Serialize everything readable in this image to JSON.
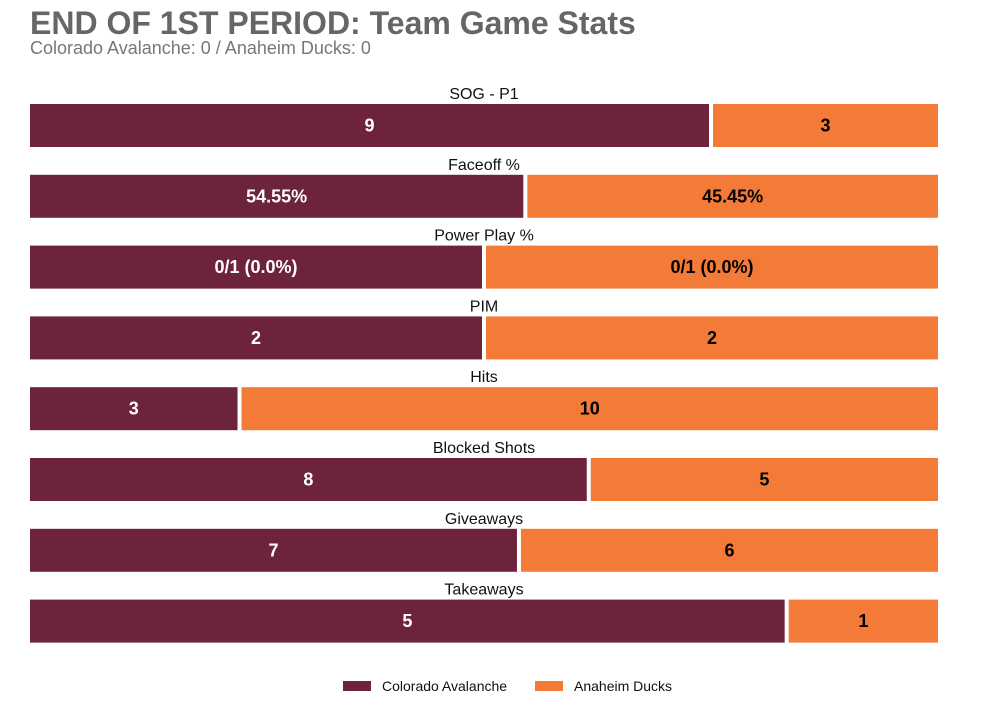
{
  "title": "END OF 1ST PERIOD: Team Game Stats",
  "subtitle": "Colorado Avalanche: 0 / Anaheim Ducks: 0",
  "colors": {
    "home": "#6e233d",
    "away": "#f47a38",
    "home_label": "#ffffff",
    "away_label": "#000000"
  },
  "chart_data": {
    "type": "bar",
    "orientation": "horizontal-stacked-percent",
    "categories": [
      "SOG - P1",
      "Faceoff %",
      "Power Play %",
      "PIM",
      "Hits",
      "Blocked Shots",
      "Giveaways",
      "Takeaways"
    ],
    "series": [
      {
        "name": "Colorado Avalanche",
        "values": [
          9,
          54.55,
          0.5,
          2,
          3,
          8,
          7,
          5
        ],
        "labels": [
          "9",
          "54.55%",
          "0/1 (0.0%)",
          "2",
          "3",
          "8",
          "7",
          "5"
        ]
      },
      {
        "name": "Anaheim Ducks",
        "values": [
          3,
          45.45,
          0.5,
          2,
          10,
          5,
          6,
          1
        ],
        "labels": [
          "3",
          "45.45%",
          "0/1 (0.0%)",
          "2",
          "10",
          "5",
          "6",
          "1"
        ]
      }
    ],
    "legend_position": "bottom-center",
    "grid": false
  }
}
